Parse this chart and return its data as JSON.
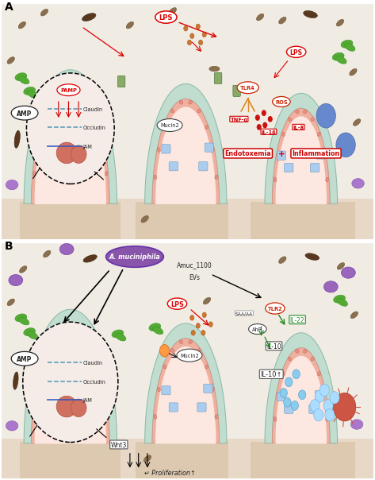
{
  "bg_color": "#f0ece4",
  "base_color": "#e8d8c8",
  "valley_color": "#ddc8b0",
  "villus_teal": "#c0ddd0",
  "villus_teal_edge": "#88b8a8",
  "villus_pink": "#f0b0a0",
  "villus_pink_edge": "#d09080",
  "villus_lumen": "#fce8e0",
  "cell_nucleus": "#e89080",
  "inset_bg": "#f5ece8",
  "red_label": "#dd0000",
  "dark_text": "#222222",
  "green_sig": "#228822",
  "purple_am": "#8855aa",
  "bacteria_brown": "#8b7050",
  "leaf_green": "#55aa33",
  "blue_cell": "#6688cc",
  "purple_cell": "#aa77cc",
  "label_fontsize": 10,
  "small_fontsize": 5.5,
  "tiny_fontsize": 4.8
}
